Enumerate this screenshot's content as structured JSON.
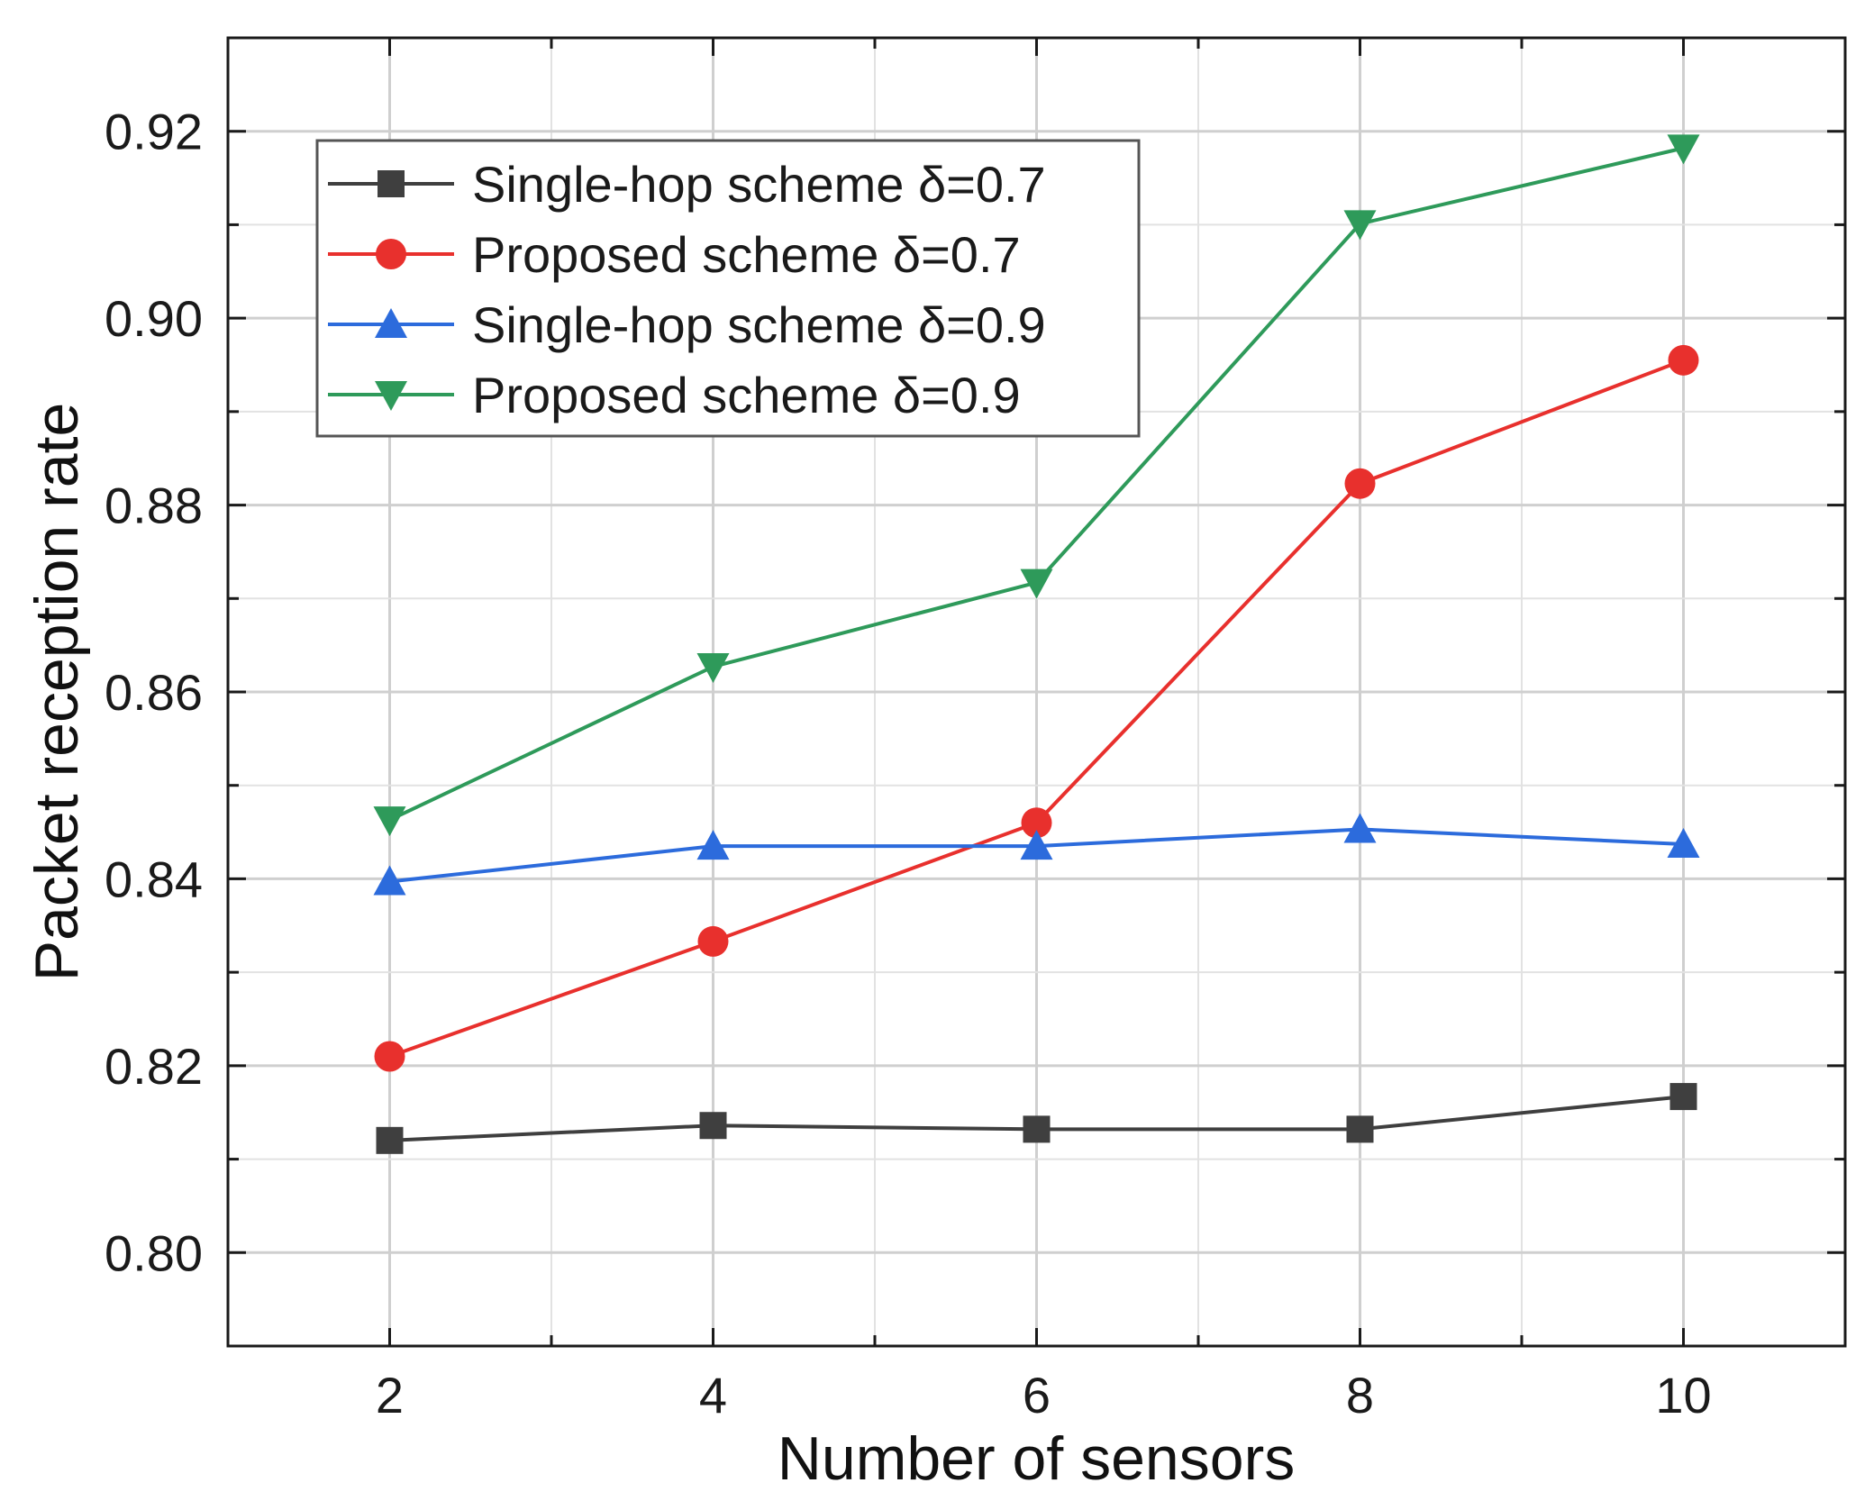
{
  "chart_data": {
    "type": "line",
    "title": "",
    "xlabel": "Number of sensors",
    "ylabel": "Packet reception rate",
    "x": [
      2,
      4,
      6,
      8,
      10
    ],
    "xlim": [
      1,
      11
    ],
    "ylim": [
      0.79,
      0.93
    ],
    "xticks": [
      "2",
      "4",
      "6",
      "8",
      "10"
    ],
    "yticks": [
      "0.80",
      "0.82",
      "0.84",
      "0.86",
      "0.88",
      "0.90",
      "0.92"
    ],
    "grid": true,
    "legend_position": "top-left",
    "series": [
      {
        "name": "Single-hop scheme δ=0.7",
        "color": "#3f3f3f",
        "marker": "square",
        "values": [
          0.812,
          0.8136,
          0.8132,
          0.8132,
          0.8167
        ]
      },
      {
        "name": "Proposed scheme  δ=0.7",
        "color": "#e8302d",
        "marker": "circle",
        "values": [
          0.821,
          0.8333,
          0.846,
          0.8823,
          0.8955
        ]
      },
      {
        "name": "Single-hop scheme δ=0.9",
        "color": "#2c6bdc",
        "marker": "triangle-up",
        "values": [
          0.8397,
          0.8435,
          0.8435,
          0.8453,
          0.8437
        ]
      },
      {
        "name": "Proposed scheme  δ=0.9",
        "color": "#2e9a5a",
        "marker": "triangle-down",
        "values": [
          0.8463,
          0.8627,
          0.8717,
          0.9101,
          0.9182
        ]
      }
    ]
  }
}
